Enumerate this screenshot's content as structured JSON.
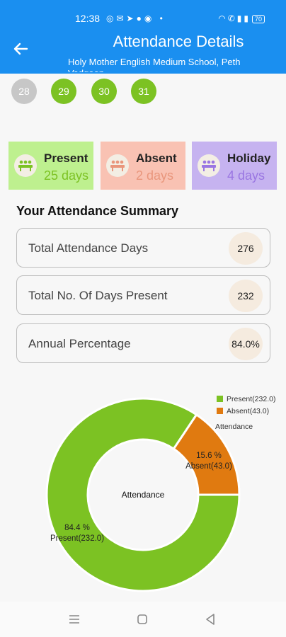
{
  "status_bar": {
    "time": "12:38",
    "battery": "70"
  },
  "header": {
    "title": "Attendance Details",
    "subtitle": "Holy Mother English Medium School, Peth Vadgaon"
  },
  "calendar": {
    "days": [
      "28",
      "29",
      "30",
      "31"
    ]
  },
  "stats": {
    "present": {
      "label": "Present",
      "value": "25 days"
    },
    "absent": {
      "label": "Absent",
      "value": "2 days"
    },
    "holiday": {
      "label": "Holiday",
      "value": "4 days"
    }
  },
  "summary": {
    "title": "Your Attendance Summary",
    "rows": [
      {
        "label": "Total Attendance Days",
        "value": "276"
      },
      {
        "label": "Total No. Of Days Present",
        "value": "232"
      },
      {
        "label": "Annual Percentage",
        "value": "84.0%"
      }
    ]
  },
  "chart_data": {
    "type": "pie",
    "center_label": "Attendance",
    "legend_title": "Attendance",
    "legend_position": "top-right",
    "slices": [
      {
        "name": "Present(232.0)",
        "value": 232.0,
        "percent_label": "84.4 %",
        "color": "#7cc223"
      },
      {
        "name": "Absent(43.0)",
        "value": 43.0,
        "percent_label": "15.6 %",
        "color": "#e07a10"
      }
    ]
  },
  "colors": {
    "header": "#1a8ff0",
    "present_bg": "#bef08f",
    "absent_bg": "#f9c2b3",
    "holiday_bg": "#c6b3f0",
    "present_slice": "#7cc223",
    "absent_slice": "#e07a10"
  },
  "icons": {
    "back": "arrow-left-icon",
    "present": "students-icon",
    "absent": "students-icon",
    "holiday": "students-icon",
    "nav": [
      "menu-icon",
      "home-square-icon",
      "back-triangle-icon"
    ]
  }
}
